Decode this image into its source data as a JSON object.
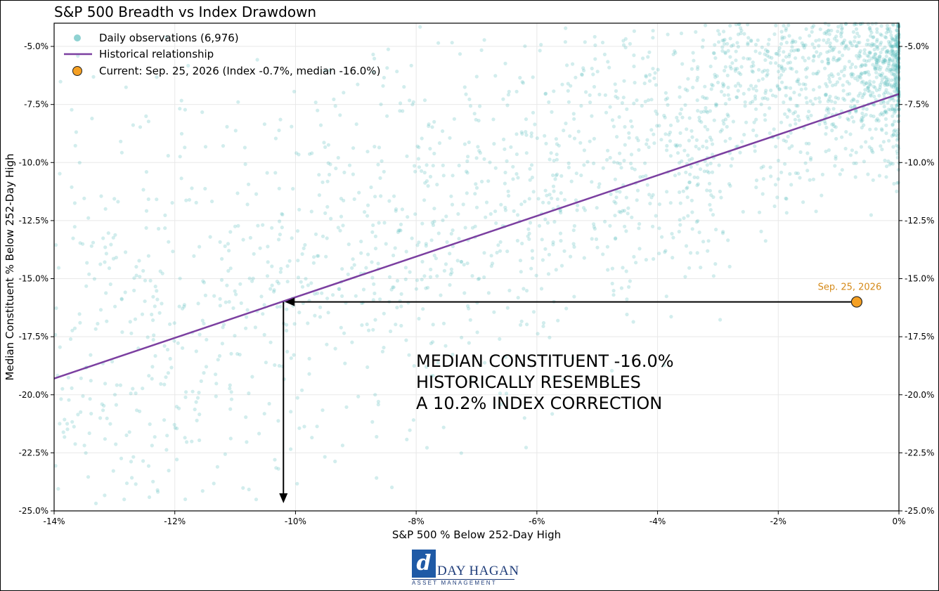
{
  "chart_data": {
    "type": "scatter",
    "title": "S&P 500 Breadth vs Index Drawdown",
    "xlabel": "S&P 500 % Below 252-Day High",
    "ylabel": "Median Constituent % Below 252-Day High",
    "xlim": [
      -14,
      0
    ],
    "ylim": [
      -25,
      -4
    ],
    "x_ticks": [
      -14,
      -12,
      -10,
      -8,
      -6,
      -4,
      -2,
      0
    ],
    "x_tick_labels": [
      "-14%",
      "-12%",
      "-10%",
      "-8%",
      "-6%",
      "-4%",
      "-2%",
      "0%"
    ],
    "y_ticks": [
      -5,
      -7.5,
      -10,
      -12.5,
      -15,
      -17.5,
      -20,
      -22.5,
      -25
    ],
    "y_tick_labels": [
      "-5.0%",
      "-7.5%",
      "-10.0%",
      "-12.5%",
      "-15.0%",
      "-17.5%",
      "-20.0%",
      "-22.5%",
      "-25.0%"
    ],
    "grid": true,
    "legend_position": "top-left",
    "legend": [
      "Daily observations (6,976)",
      "Historical relationship",
      "Current: Sep. 25, 2026 (Index -0.7%, median -16.0%)"
    ],
    "series": [
      {
        "name": "Daily observations (6,976)",
        "kind": "scatter",
        "color": "#5fbfbf",
        "count": 6976
      },
      {
        "name": "Historical relationship",
        "kind": "line",
        "color": "#7b3fa0",
        "x": [
          -14,
          0
        ],
        "y": [
          -19.3,
          -7.05
        ]
      },
      {
        "name": "Current: Sep. 25, 2026 (Index -0.7%, median -16.0%)",
        "kind": "point",
        "color": "#f5a023",
        "x": -0.7,
        "y": -16.0
      }
    ],
    "annotations": {
      "current_label": "Sep. 25, 2026",
      "arrow_horizontal": {
        "from": [
          -0.7,
          -16.0
        ],
        "to": [
          -10.2,
          -16.0
        ]
      },
      "arrow_vertical": {
        "from": [
          -10.2,
          -16.0
        ],
        "to": [
          -10.2,
          -25.0
        ]
      },
      "callout_lines": [
        "MEDIAN CONSTITUENT -16.0%",
        "HISTORICALLY RESEMBLES",
        "A 10.2% INDEX CORRECTION"
      ]
    }
  },
  "logo": {
    "mark": "d",
    "name": "DAY HAGAN",
    "subtitle": "ASSET MANAGEMENT"
  }
}
